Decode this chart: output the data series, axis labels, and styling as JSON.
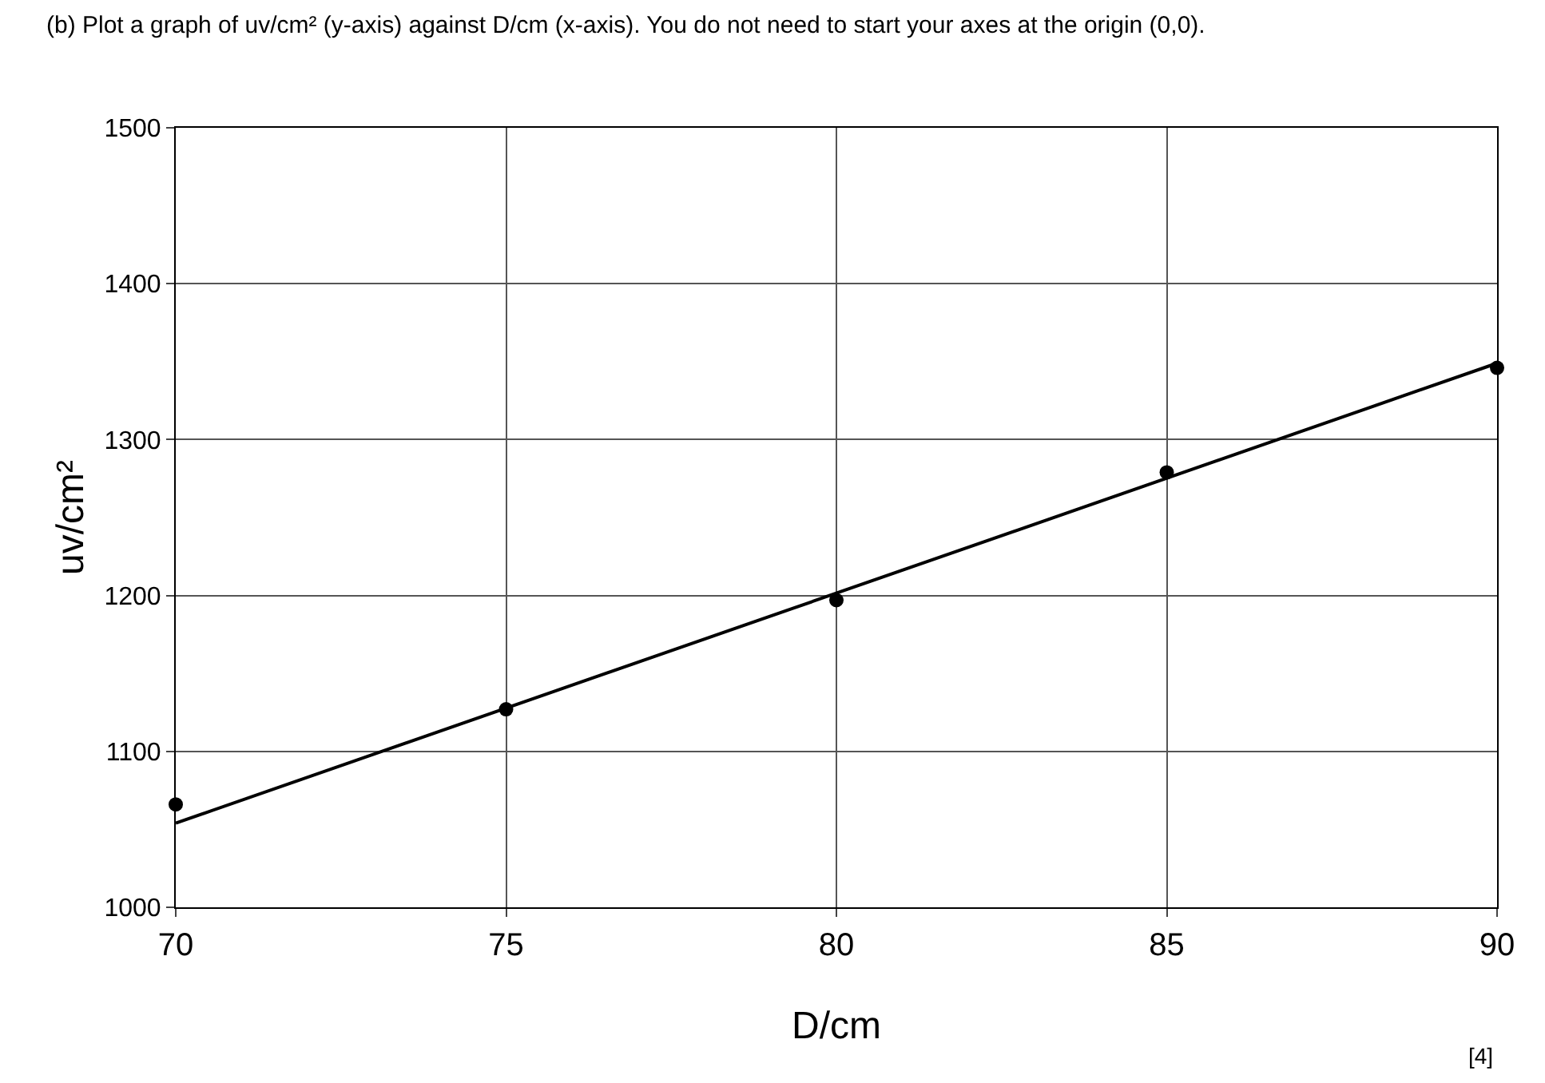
{
  "chart_data": {
    "type": "scatter",
    "title": "(b) Plot a graph of uv/cm² (y-axis) against D/cm (x-axis). You do not need to start your axes at the origin (0,0).",
    "xlabel": "D/cm",
    "ylabel": "uv/cm²",
    "annotations": [
      "[4]"
    ],
    "series": [
      {
        "color": "#000000",
        "marker": "circle",
        "x": [
          70,
          75,
          80,
          85,
          90
        ],
        "values": [
          1066,
          1127,
          1197,
          1279,
          1346
        ]
      },
      {
        "type": "line",
        "color": "#000000",
        "marker": "none",
        "line_style": "solid",
        "x": [
          70,
          90
        ],
        "values": [
          1054,
          1349
        ]
      }
    ],
    "xlim": [
      70,
      90
    ],
    "xticks": [
      70,
      75,
      80,
      85,
      90
    ],
    "ylim": [
      1000,
      1500
    ],
    "yticks": [
      1000,
      1100,
      1200,
      1300,
      1400,
      1500
    ],
    "grid": true
  }
}
